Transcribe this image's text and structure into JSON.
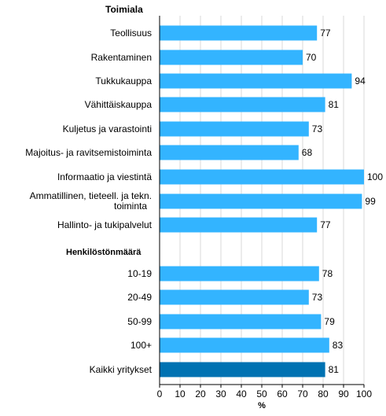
{
  "chart_data": {
    "type": "bar",
    "orientation": "horizontal",
    "xlabel": "%",
    "xlim": [
      0,
      100
    ],
    "xticks": [
      "0",
      "10",
      "20",
      "30",
      "40",
      "50",
      "60",
      "70",
      "80",
      "90",
      "100"
    ],
    "grid": "vertical",
    "groups": [
      {
        "title": "Toimiala",
        "categories": [
          "Teollisuus",
          "Rakentaminen",
          "Tukkukauppa",
          "Vähittäiskauppa",
          "Kuljetus ja varastointi",
          "Majoitus- ja ravitsemistoiminta",
          "Informaatio ja viestintä",
          "Ammatillinen, tieteell. ja tekn. toiminta",
          "Hallinto- ja tukipalvelut"
        ],
        "values": [
          77,
          70,
          94,
          81,
          73,
          68,
          100,
          99,
          77
        ]
      },
      {
        "title": "Henkilöstönmäärä",
        "categories": [
          "10-19",
          "20-49",
          "50-99",
          "100+"
        ],
        "values": [
          78,
          73,
          79,
          83
        ]
      },
      {
        "title": "",
        "categories": [
          "Kaikki yritykset"
        ],
        "values": [
          81
        ],
        "highlight": true
      }
    ],
    "colors": {
      "bar": "#33b4ff",
      "highlight": "#0072b2",
      "grid": "#d9d9d9",
      "axis": "#000000"
    }
  }
}
